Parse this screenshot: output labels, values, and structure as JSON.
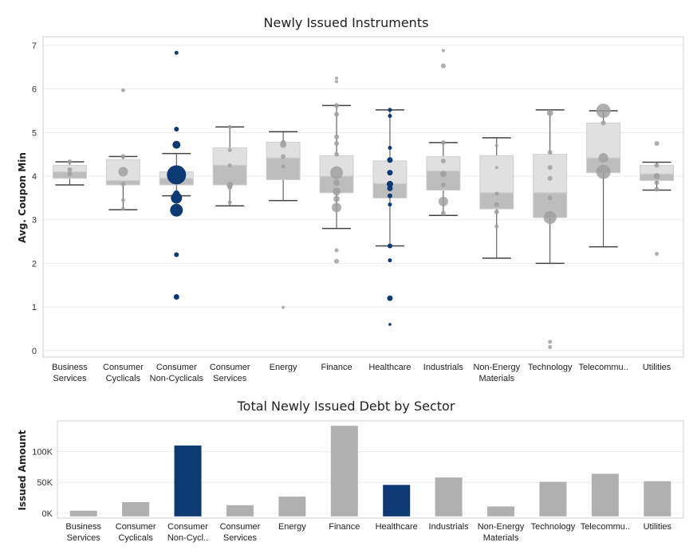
{
  "colors": {
    "highlight": "#0d3a73",
    "gray_point": "#9d9d9d",
    "box_upper": "#e0e0e0",
    "box_lower": "#bdbdbd",
    "whisker": "#444444",
    "bar_gray": "#b0b0b0",
    "gridline": "#ececec",
    "frame": "#d0d0d0"
  },
  "chart_data": [
    {
      "type": "box",
      "title": "Newly Issued Instruments",
      "ylabel": "Avg. Coupon Min",
      "xlabel": "",
      "ylim": [
        -0.15,
        7.2
      ],
      "yticks": [
        0,
        1,
        2,
        3,
        4,
        5,
        6,
        7
      ],
      "grid": true,
      "categories": [
        {
          "name": "Business Services",
          "lines": [
            "Business",
            "Services"
          ],
          "highlight": false,
          "whisker_low": 3.8,
          "q1": 3.95,
          "median": 4.1,
          "q3": 4.25,
          "whisker_high": 4.33,
          "points": [
            {
              "y": 4.33,
              "s": 3
            },
            {
              "y": 4.15,
              "s": 3
            },
            {
              "y": 4.05,
              "s": 3
            }
          ]
        },
        {
          "name": "Consumer Cyclicals",
          "lines": [
            "Consumer",
            "Cyclicals"
          ],
          "highlight": false,
          "whisker_low": 3.23,
          "q1": 3.8,
          "median": 3.9,
          "q3": 4.38,
          "whisker_high": 4.45,
          "points": [
            {
              "y": 5.97,
              "s": 2.5
            },
            {
              "y": 4.45,
              "s": 3
            },
            {
              "y": 4.1,
              "s": 6
            },
            {
              "y": 3.82,
              "s": 3
            },
            {
              "y": 3.45,
              "s": 2.5
            },
            {
              "y": 3.25,
              "s": 2.5
            }
          ]
        },
        {
          "name": "Consumer Non-Cyclicals",
          "lines": [
            "Consumer",
            "Non-Cyclicals"
          ],
          "highlight": true,
          "whisker_low": 3.55,
          "q1": 3.8,
          "median": 3.95,
          "q3": 4.1,
          "whisker_high": 4.52,
          "points": [
            {
              "y": 6.83,
              "s": 2.5
            },
            {
              "y": 5.08,
              "s": 3
            },
            {
              "y": 4.72,
              "s": 5
            },
            {
              "y": 4.03,
              "s": 12
            },
            {
              "y": 3.6,
              "s": 4
            },
            {
              "y": 3.5,
              "s": 7
            },
            {
              "y": 3.22,
              "s": 8
            },
            {
              "y": 2.2,
              "s": 3
            },
            {
              "y": 1.23,
              "s": 3.5
            }
          ]
        },
        {
          "name": "Consumer Services",
          "lines": [
            "Consumer",
            "Services"
          ],
          "highlight": false,
          "whisker_low": 3.32,
          "q1": 3.8,
          "median": 4.25,
          "q3": 4.65,
          "whisker_high": 5.13,
          "points": [
            {
              "y": 5.13,
              "s": 2.5
            },
            {
              "y": 4.6,
              "s": 2.5
            },
            {
              "y": 4.25,
              "s": 2.5
            },
            {
              "y": 3.8,
              "s": 4
            },
            {
              "y": 3.75,
              "s": 3
            },
            {
              "y": 3.4,
              "s": 2.5
            }
          ]
        },
        {
          "name": "Energy",
          "lines": [
            "Energy"
          ],
          "highlight": false,
          "whisker_low": 3.44,
          "q1": 3.92,
          "median": 4.42,
          "q3": 4.78,
          "whisker_high": 5.02,
          "points": [
            {
              "y": 4.78,
              "s": 3
            },
            {
              "y": 4.72,
              "s": 4
            },
            {
              "y": 4.45,
              "s": 3
            },
            {
              "y": 4.22,
              "s": 2.5
            },
            {
              "y": 0.99,
              "s": 2
            }
          ]
        },
        {
          "name": "Finance",
          "lines": [
            "Finance"
          ],
          "highlight": false,
          "whisker_low": 2.8,
          "q1": 3.62,
          "median": 4.0,
          "q3": 4.47,
          "whisker_high": 5.62,
          "points": [
            {
              "y": 6.25,
              "s": 2
            },
            {
              "y": 6.17,
              "s": 2
            },
            {
              "y": 5.62,
              "s": 3
            },
            {
              "y": 5.42,
              "s": 3
            },
            {
              "y": 4.9,
              "s": 3
            },
            {
              "y": 4.75,
              "s": 3
            },
            {
              "y": 4.5,
              "s": 3
            },
            {
              "y": 4.08,
              "s": 8
            },
            {
              "y": 3.85,
              "s": 4
            },
            {
              "y": 3.65,
              "s": 5
            },
            {
              "y": 3.48,
              "s": 4
            },
            {
              "y": 3.28,
              "s": 6
            },
            {
              "y": 2.3,
              "s": 2.5
            },
            {
              "y": 2.05,
              "s": 3
            }
          ]
        },
        {
          "name": "Healthcare",
          "lines": [
            "Healthcare"
          ],
          "highlight": true,
          "whisker_low": 2.4,
          "q1": 3.5,
          "median": 3.83,
          "q3": 4.35,
          "whisker_high": 5.52,
          "points": [
            {
              "y": 5.52,
              "s": 2.5
            },
            {
              "y": 5.38,
              "s": 2.5
            },
            {
              "y": 4.65,
              "s": 2.5
            },
            {
              "y": 4.37,
              "s": 3.5
            },
            {
              "y": 4.08,
              "s": 3.5
            },
            {
              "y": 3.82,
              "s": 4
            },
            {
              "y": 3.72,
              "s": 3.5
            },
            {
              "y": 3.55,
              "s": 3
            },
            {
              "y": 3.35,
              "s": 2.5
            },
            {
              "y": 2.4,
              "s": 3
            },
            {
              "y": 2.07,
              "s": 2.5
            },
            {
              "y": 1.2,
              "s": 3.5
            },
            {
              "y": 0.6,
              "s": 1.8
            }
          ]
        },
        {
          "name": "Industrials",
          "lines": [
            "Industrials"
          ],
          "highlight": false,
          "whisker_low": 3.1,
          "q1": 3.68,
          "median": 4.12,
          "q3": 4.45,
          "whisker_high": 4.77,
          "points": [
            {
              "y": 6.88,
              "s": 2
            },
            {
              "y": 6.53,
              "s": 3
            },
            {
              "y": 4.77,
              "s": 3
            },
            {
              "y": 4.35,
              "s": 3
            },
            {
              "y": 4.05,
              "s": 4
            },
            {
              "y": 3.8,
              "s": 3
            },
            {
              "y": 3.42,
              "s": 6
            },
            {
              "y": 3.15,
              "s": 3
            }
          ]
        },
        {
          "name": "Non-Energy Materials",
          "lines": [
            "Non-Energy",
            "Materials"
          ],
          "highlight": false,
          "whisker_low": 2.12,
          "q1": 3.25,
          "median": 3.62,
          "q3": 4.47,
          "whisker_high": 4.88,
          "points": [
            {
              "y": 4.7,
              "s": 2
            },
            {
              "y": 4.2,
              "s": 2
            },
            {
              "y": 3.6,
              "s": 2.5
            },
            {
              "y": 3.35,
              "s": 3
            },
            {
              "y": 3.18,
              "s": 3
            },
            {
              "y": 2.85,
              "s": 2.5
            }
          ]
        },
        {
          "name": "Technology",
          "lines": [
            "Technology"
          ],
          "highlight": false,
          "whisker_low": 2.0,
          "q1": 3.05,
          "median": 3.62,
          "q3": 4.5,
          "whisker_high": 5.52,
          "points": [
            {
              "y": 5.45,
              "s": 4
            },
            {
              "y": 4.55,
              "s": 3
            },
            {
              "y": 4.2,
              "s": 3
            },
            {
              "y": 3.95,
              "s": 3
            },
            {
              "y": 3.5,
              "s": 3
            },
            {
              "y": 3.05,
              "s": 8
            },
            {
              "y": 0.2,
              "s": 2.5
            },
            {
              "y": 0.08,
              "s": 2.5
            }
          ]
        },
        {
          "name": "Telecommu..",
          "lines": [
            "Telecommu.."
          ],
          "highlight": false,
          "whisker_low": 2.38,
          "q1": 4.08,
          "median": 4.42,
          "q3": 5.22,
          "whisker_high": 5.5,
          "points": [
            {
              "y": 5.5,
              "s": 9
            },
            {
              "y": 5.22,
              "s": 3
            },
            {
              "y": 4.42,
              "s": 6
            },
            {
              "y": 4.1,
              "s": 9
            }
          ]
        },
        {
          "name": "Utilities",
          "lines": [
            "Utilities"
          ],
          "highlight": false,
          "whisker_low": 3.68,
          "q1": 3.9,
          "median": 4.05,
          "q3": 4.25,
          "whisker_high": 4.32,
          "points": [
            {
              "y": 4.75,
              "s": 3
            },
            {
              "y": 4.25,
              "s": 3
            },
            {
              "y": 4.0,
              "s": 4
            },
            {
              "y": 3.85,
              "s": 3
            },
            {
              "y": 3.7,
              "s": 3
            },
            {
              "y": 2.22,
              "s": 2.5
            }
          ]
        }
      ]
    },
    {
      "type": "bar",
      "title": "Total Newly Issued Debt by Sector",
      "ylabel": "Issued Amount",
      "xlabel": "",
      "ylim": [
        -8000,
        150000
      ],
      "yticks": [
        0,
        50000,
        100000
      ],
      "ytick_labels": [
        "0K",
        "50K",
        "100K"
      ],
      "grid": true,
      "categories": [
        {
          "name": "Business Services",
          "lines": [
            "Business",
            "Services"
          ],
          "value": 4000,
          "highlight": false
        },
        {
          "name": "Consumer Cyclicals",
          "lines": [
            "Consumer",
            "Cyclicals"
          ],
          "value": 18000,
          "highlight": false
        },
        {
          "name": "Consumer Non-Cycl..",
          "lines": [
            "Consumer",
            "Non-Cycl.."
          ],
          "value": 110000,
          "highlight": true
        },
        {
          "name": "Consumer Services",
          "lines": [
            "Consumer",
            "Services"
          ],
          "value": 13000,
          "highlight": false
        },
        {
          "name": "Energy",
          "lines": [
            "Energy"
          ],
          "value": 27000,
          "highlight": false
        },
        {
          "name": "Finance",
          "lines": [
            "Finance"
          ],
          "value": 142000,
          "highlight": false
        },
        {
          "name": "Healthcare",
          "lines": [
            "Healthcare"
          ],
          "value": 46000,
          "highlight": true
        },
        {
          "name": "Industrials",
          "lines": [
            "Industrials"
          ],
          "value": 58000,
          "highlight": false
        },
        {
          "name": "Non-Energy Materials",
          "lines": [
            "Non-Energy",
            "Materials"
          ],
          "value": 11000,
          "highlight": false
        },
        {
          "name": "Technology",
          "lines": [
            "Technology"
          ],
          "value": 51000,
          "highlight": false
        },
        {
          "name": "Telecommu..",
          "lines": [
            "Telecommu.."
          ],
          "value": 64000,
          "highlight": false
        },
        {
          "name": "Utilities",
          "lines": [
            "Utilities"
          ],
          "value": 52000,
          "highlight": false
        }
      ]
    }
  ]
}
